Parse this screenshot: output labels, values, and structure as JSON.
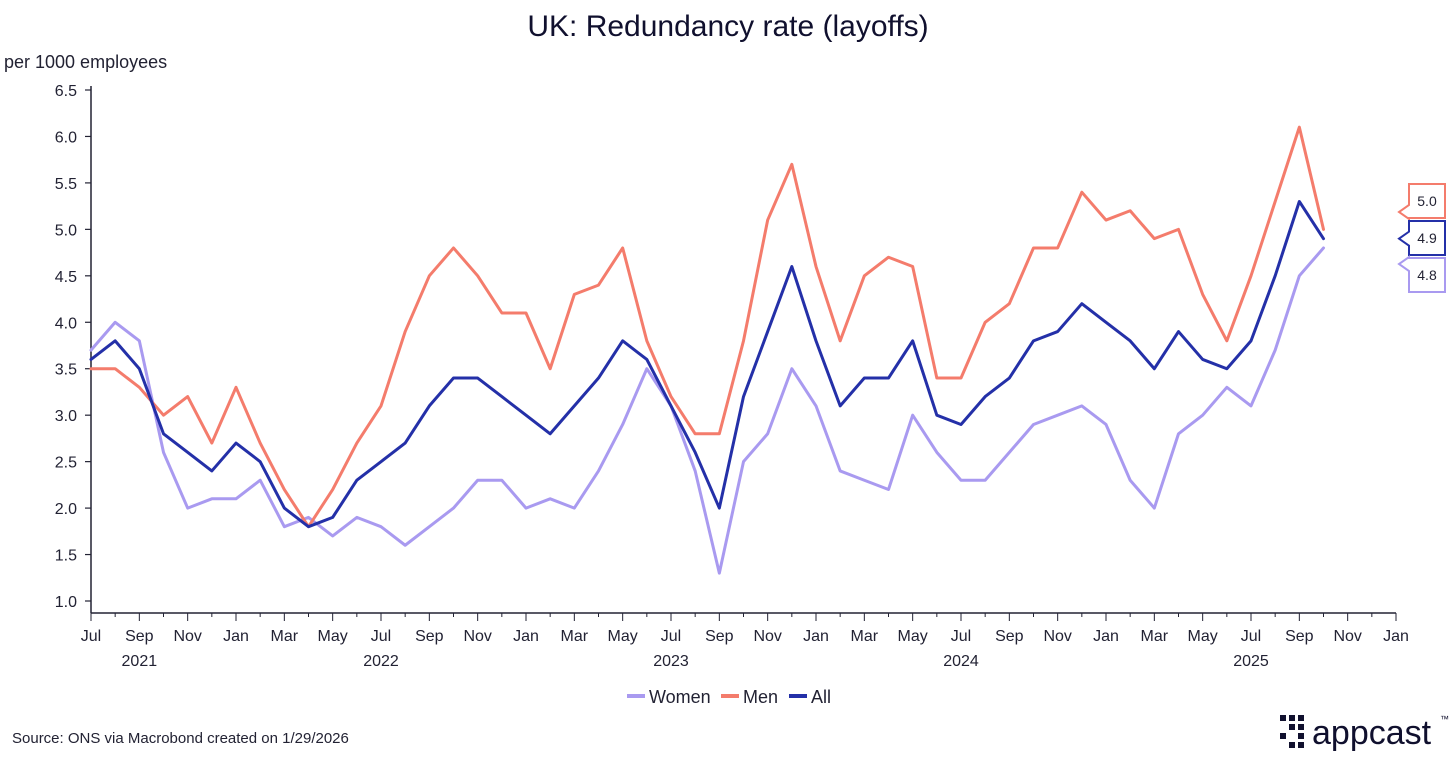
{
  "chart_data": {
    "type": "line",
    "title": "UK: Redundancy rate (layoffs)",
    "ylabel": "per 1000 employees",
    "xlabel": "",
    "ylim": [
      1.0,
      6.5
    ],
    "yticks": [
      "1.0",
      "1.5",
      "2.0",
      "2.5",
      "3.0",
      "3.5",
      "4.0",
      "4.5",
      "5.0",
      "5.5",
      "6.0",
      "6.5"
    ],
    "x_tick_labels": [
      "Jul",
      "Sep",
      "Nov",
      "Jan",
      "Mar",
      "May",
      "Jul",
      "Sep",
      "Nov",
      "Jan",
      "Mar",
      "May",
      "Jul",
      "Sep",
      "Nov",
      "Jan",
      "Mar",
      "May",
      "Jul",
      "Sep",
      "Nov",
      "Jan",
      "Mar",
      "May",
      "Jul",
      "Sep",
      "Nov",
      "Jan"
    ],
    "year_labels": [
      "2021",
      "2022",
      "2023",
      "2024",
      "2025"
    ],
    "x_start": "2021-07",
    "x_end": "2026-01",
    "series": [
      {
        "name": "Women",
        "color": "#A99AF0",
        "start_month_index": 0,
        "values": [
          3.7,
          4.0,
          3.8,
          2.6,
          2.0,
          2.1,
          2.1,
          2.3,
          1.8,
          1.9,
          1.7,
          1.9,
          1.8,
          1.6,
          1.8,
          2.0,
          2.3,
          2.3,
          2.0,
          2.1,
          2.0,
          2.4,
          2.9,
          3.5,
          3.1,
          2.4,
          1.3,
          2.5,
          2.8,
          3.5,
          3.1,
          2.4,
          2.3,
          2.2,
          3.0,
          2.6,
          2.3,
          2.3,
          2.6,
          2.9,
          3.0,
          3.1,
          2.9,
          2.3,
          2.0,
          2.8,
          3.0,
          3.3,
          3.1,
          3.7,
          4.5,
          4.8
        ],
        "end_label": "4.8"
      },
      {
        "name": "Men",
        "color": "#F47C6C",
        "start_month_index": 0,
        "values": [
          3.5,
          3.5,
          3.3,
          3.0,
          3.2,
          2.7,
          3.3,
          2.7,
          2.2,
          1.8,
          2.2,
          2.7,
          3.1,
          3.9,
          4.5,
          4.8,
          4.5,
          4.1,
          4.1,
          3.5,
          4.3,
          4.4,
          4.8,
          3.8,
          3.2,
          2.8,
          2.8,
          3.8,
          5.1,
          5.7,
          4.6,
          3.8,
          4.5,
          4.7,
          4.6,
          3.4,
          3.4,
          4.0,
          4.2,
          4.8,
          4.8,
          5.4,
          5.1,
          5.2,
          4.9,
          5.0,
          4.3,
          3.8,
          4.5,
          5.3,
          6.1,
          5.0
        ],
        "end_label": "5.0"
      },
      {
        "name": "All",
        "color": "#2430A8",
        "start_month_index": 0,
        "values": [
          3.6,
          3.8,
          3.5,
          2.8,
          2.6,
          2.4,
          2.7,
          2.5,
          2.0,
          1.8,
          1.9,
          2.3,
          2.5,
          2.7,
          3.1,
          3.4,
          3.4,
          3.2,
          3.0,
          2.8,
          3.1,
          3.4,
          3.8,
          3.6,
          3.1,
          2.6,
          2.0,
          3.2,
          3.9,
          4.6,
          3.8,
          3.1,
          3.4,
          3.4,
          3.8,
          3.0,
          2.9,
          3.2,
          3.4,
          3.8,
          3.9,
          4.2,
          4.0,
          3.8,
          3.5,
          3.9,
          3.6,
          3.5,
          3.8,
          4.5,
          5.3,
          4.9
        ],
        "end_label": "4.9"
      }
    ],
    "legend": {
      "placement": "bottom-center",
      "entries": [
        "Women",
        "Men",
        "All"
      ]
    },
    "grid": false,
    "source": "Source: ONS via Macrobond created on 1/29/2026",
    "logo_text": "appcast",
    "logo_trademark": "™"
  }
}
